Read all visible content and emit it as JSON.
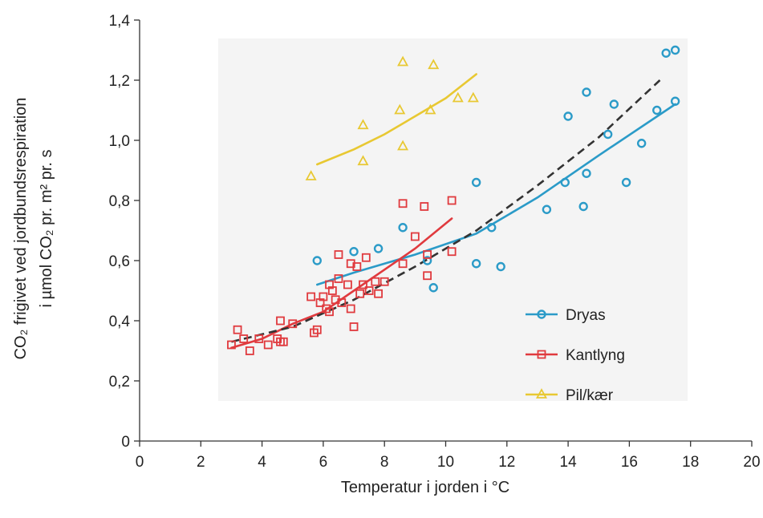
{
  "chart_data": {
    "type": "scatter",
    "title": "",
    "xlabel": "Temperatur i jorden i °C",
    "ylabel_line1": "CO₂ frigivet ved jordbundsrespiration",
    "ylabel_line2": "i µmol CO₂ pr. m² pr. s",
    "xlim": [
      0,
      20
    ],
    "ylim": [
      0,
      1.4
    ],
    "x_ticks": [
      0,
      2,
      4,
      6,
      8,
      10,
      12,
      14,
      16,
      18,
      20
    ],
    "x_tick_labels": [
      "0",
      "2",
      "4",
      "6",
      "8",
      "10",
      "12",
      "14",
      "16",
      "18",
      "20"
    ],
    "y_ticks": [
      0,
      0.2,
      0.4,
      0.6,
      0.8,
      1.0,
      1.2,
      1.4
    ],
    "y_tick_labels": [
      "0",
      "0,2",
      "0,4",
      "0,6",
      "0,8",
      "1,0",
      "1,2",
      "1,4"
    ],
    "grid": false,
    "legend_position": "bottom-right inside plot",
    "plot_background": "#f4f4f4",
    "series": [
      {
        "name": "Dryas",
        "color": "#2b9bc8",
        "marker": "circle",
        "points": [
          [
            5.8,
            0.6
          ],
          [
            7.0,
            0.63
          ],
          [
            7.8,
            0.64
          ],
          [
            8.6,
            0.71
          ],
          [
            9.4,
            0.6
          ],
          [
            9.6,
            0.51
          ],
          [
            11.0,
            0.86
          ],
          [
            11.0,
            0.59
          ],
          [
            11.5,
            0.71
          ],
          [
            11.8,
            0.58
          ],
          [
            13.3,
            0.77
          ],
          [
            13.9,
            0.86
          ],
          [
            14.0,
            1.08
          ],
          [
            14.5,
            0.78
          ],
          [
            14.6,
            0.89
          ],
          [
            14.6,
            1.16
          ],
          [
            15.3,
            1.02
          ],
          [
            15.5,
            1.12
          ],
          [
            15.9,
            0.86
          ],
          [
            16.4,
            0.99
          ],
          [
            16.9,
            1.1
          ],
          [
            17.2,
            1.29
          ],
          [
            17.5,
            1.3
          ],
          [
            17.5,
            1.13
          ]
        ],
        "fit": [
          [
            5.8,
            0.52
          ],
          [
            7.0,
            0.56
          ],
          [
            9.0,
            0.62
          ],
          [
            11.0,
            0.69
          ],
          [
            13.0,
            0.81
          ],
          [
            15.0,
            0.95
          ],
          [
            17.5,
            1.12
          ]
        ]
      },
      {
        "name": "Kantlyng",
        "color": "#e03a3e",
        "marker": "square",
        "points": [
          [
            3.0,
            0.32
          ],
          [
            3.2,
            0.37
          ],
          [
            3.4,
            0.34
          ],
          [
            3.6,
            0.3
          ],
          [
            3.9,
            0.34
          ],
          [
            4.2,
            0.32
          ],
          [
            4.5,
            0.34
          ],
          [
            4.6,
            0.33
          ],
          [
            4.6,
            0.4
          ],
          [
            4.7,
            0.33
          ],
          [
            5.0,
            0.39
          ],
          [
            5.6,
            0.48
          ],
          [
            5.7,
            0.36
          ],
          [
            5.8,
            0.37
          ],
          [
            5.9,
            0.46
          ],
          [
            6.0,
            0.48
          ],
          [
            6.1,
            0.44
          ],
          [
            6.2,
            0.52
          ],
          [
            6.2,
            0.43
          ],
          [
            6.3,
            0.5
          ],
          [
            6.4,
            0.47
          ],
          [
            6.5,
            0.62
          ],
          [
            6.5,
            0.54
          ],
          [
            6.6,
            0.46
          ],
          [
            6.8,
            0.52
          ],
          [
            6.9,
            0.44
          ],
          [
            6.9,
            0.59
          ],
          [
            7.0,
            0.38
          ],
          [
            7.1,
            0.58
          ],
          [
            7.2,
            0.49
          ],
          [
            7.3,
            0.52
          ],
          [
            7.4,
            0.61
          ],
          [
            7.5,
            0.5
          ],
          [
            7.7,
            0.53
          ],
          [
            7.8,
            0.49
          ],
          [
            8.0,
            0.53
          ],
          [
            8.6,
            0.79
          ],
          [
            8.6,
            0.59
          ],
          [
            9.0,
            0.68
          ],
          [
            9.3,
            0.78
          ],
          [
            9.4,
            0.62
          ],
          [
            9.4,
            0.55
          ],
          [
            10.2,
            0.8
          ],
          [
            10.2,
            0.63
          ]
        ],
        "fit": [
          [
            3.0,
            0.31
          ],
          [
            4.0,
            0.34
          ],
          [
            5.0,
            0.39
          ],
          [
            6.0,
            0.43
          ],
          [
            7.0,
            0.5
          ],
          [
            8.0,
            0.57
          ],
          [
            9.0,
            0.64
          ],
          [
            10.2,
            0.74
          ]
        ]
      },
      {
        "name": "Pil/kær",
        "color": "#e8c832",
        "marker": "triangle",
        "points": [
          [
            5.6,
            0.88
          ],
          [
            7.3,
            1.05
          ],
          [
            7.3,
            0.93
          ],
          [
            8.5,
            1.1
          ],
          [
            8.6,
            1.26
          ],
          [
            8.6,
            0.98
          ],
          [
            9.5,
            1.1
          ],
          [
            9.6,
            1.25
          ],
          [
            10.4,
            1.14
          ],
          [
            10.9,
            1.14
          ]
        ],
        "fit": [
          [
            5.8,
            0.92
          ],
          [
            7.0,
            0.97
          ],
          [
            8.0,
            1.02
          ],
          [
            9.0,
            1.08
          ],
          [
            10.0,
            1.14
          ],
          [
            11.0,
            1.22
          ]
        ]
      }
    ],
    "combined_fit": {
      "style": "dashed",
      "color": "#333333",
      "points": [
        [
          3.0,
          0.33
        ],
        [
          5.0,
          0.38
        ],
        [
          7.0,
          0.47
        ],
        [
          9.0,
          0.58
        ],
        [
          11.0,
          0.7
        ],
        [
          13.0,
          0.85
        ],
        [
          15.0,
          1.01
        ],
        [
          17.0,
          1.2
        ]
      ]
    }
  }
}
